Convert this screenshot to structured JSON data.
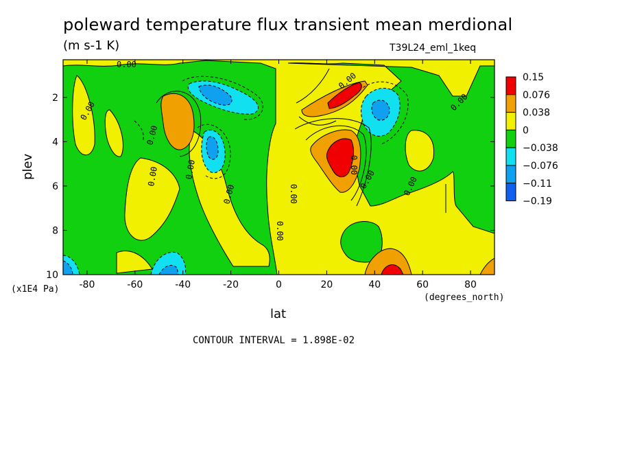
{
  "chart_data": {
    "type": "heatmap",
    "title": "poleward temperature flux transient mean merdional",
    "units": "(m s-1 K)",
    "run_label": "T39L24_eml_1keq",
    "xlabel": "lat",
    "x_unit": "(degrees_north)",
    "ylabel": "plev",
    "y_unit": "(x1E4 Pa)",
    "xlim": [
      -90,
      90
    ],
    "ylim": [
      10,
      0.3
    ],
    "x_ticks": [
      -80,
      -60,
      -40,
      -20,
      0,
      20,
      40,
      60,
      80
    ],
    "x_tick_labels": [
      "-80",
      "-60",
      "-40",
      "-20",
      "0",
      "20",
      "40",
      "60",
      "80"
    ],
    "y_ticks": [
      2,
      4,
      6,
      8,
      10
    ],
    "y_tick_labels": [
      "2",
      "4",
      "6",
      "8",
      "10"
    ],
    "contour_interval_label": "CONTOUR INTERVAL = 1.898E-02",
    "zero_contour_label": "0.00",
    "legend": {
      "labels": [
        "0.15",
        "0.076",
        "0.038",
        "0",
        "−0.038",
        "−0.076",
        "−0.11",
        "−0.19"
      ],
      "colors": [
        "#f00000",
        "#f0a000",
        "#f0f000",
        "#10d010",
        "#10e0f0",
        "#10a0f0",
        "#1060f0"
      ]
    },
    "features": [
      {
        "lat": -40,
        "plev": 2.6,
        "value": 0.06
      },
      {
        "lat": -30,
        "plev": 1.7,
        "value": -0.07
      },
      {
        "lat": -28,
        "plev": 4.1,
        "value": -0.06
      },
      {
        "lat": -45,
        "plev": 9.6,
        "value": -0.06
      },
      {
        "lat": 30,
        "plev": 1.7,
        "value": 0.09
      },
      {
        "lat": 27,
        "plev": 4.5,
        "value": 0.08
      },
      {
        "lat": 45,
        "plev": 9.8,
        "value": 0.08
      },
      {
        "lat": 42,
        "plev": 2.5,
        "value": -0.06
      },
      {
        "lat": 90,
        "plev": 9.8,
        "value": 0.05
      },
      {
        "lat": -90,
        "plev": 9.8,
        "value": -0.06
      }
    ]
  }
}
